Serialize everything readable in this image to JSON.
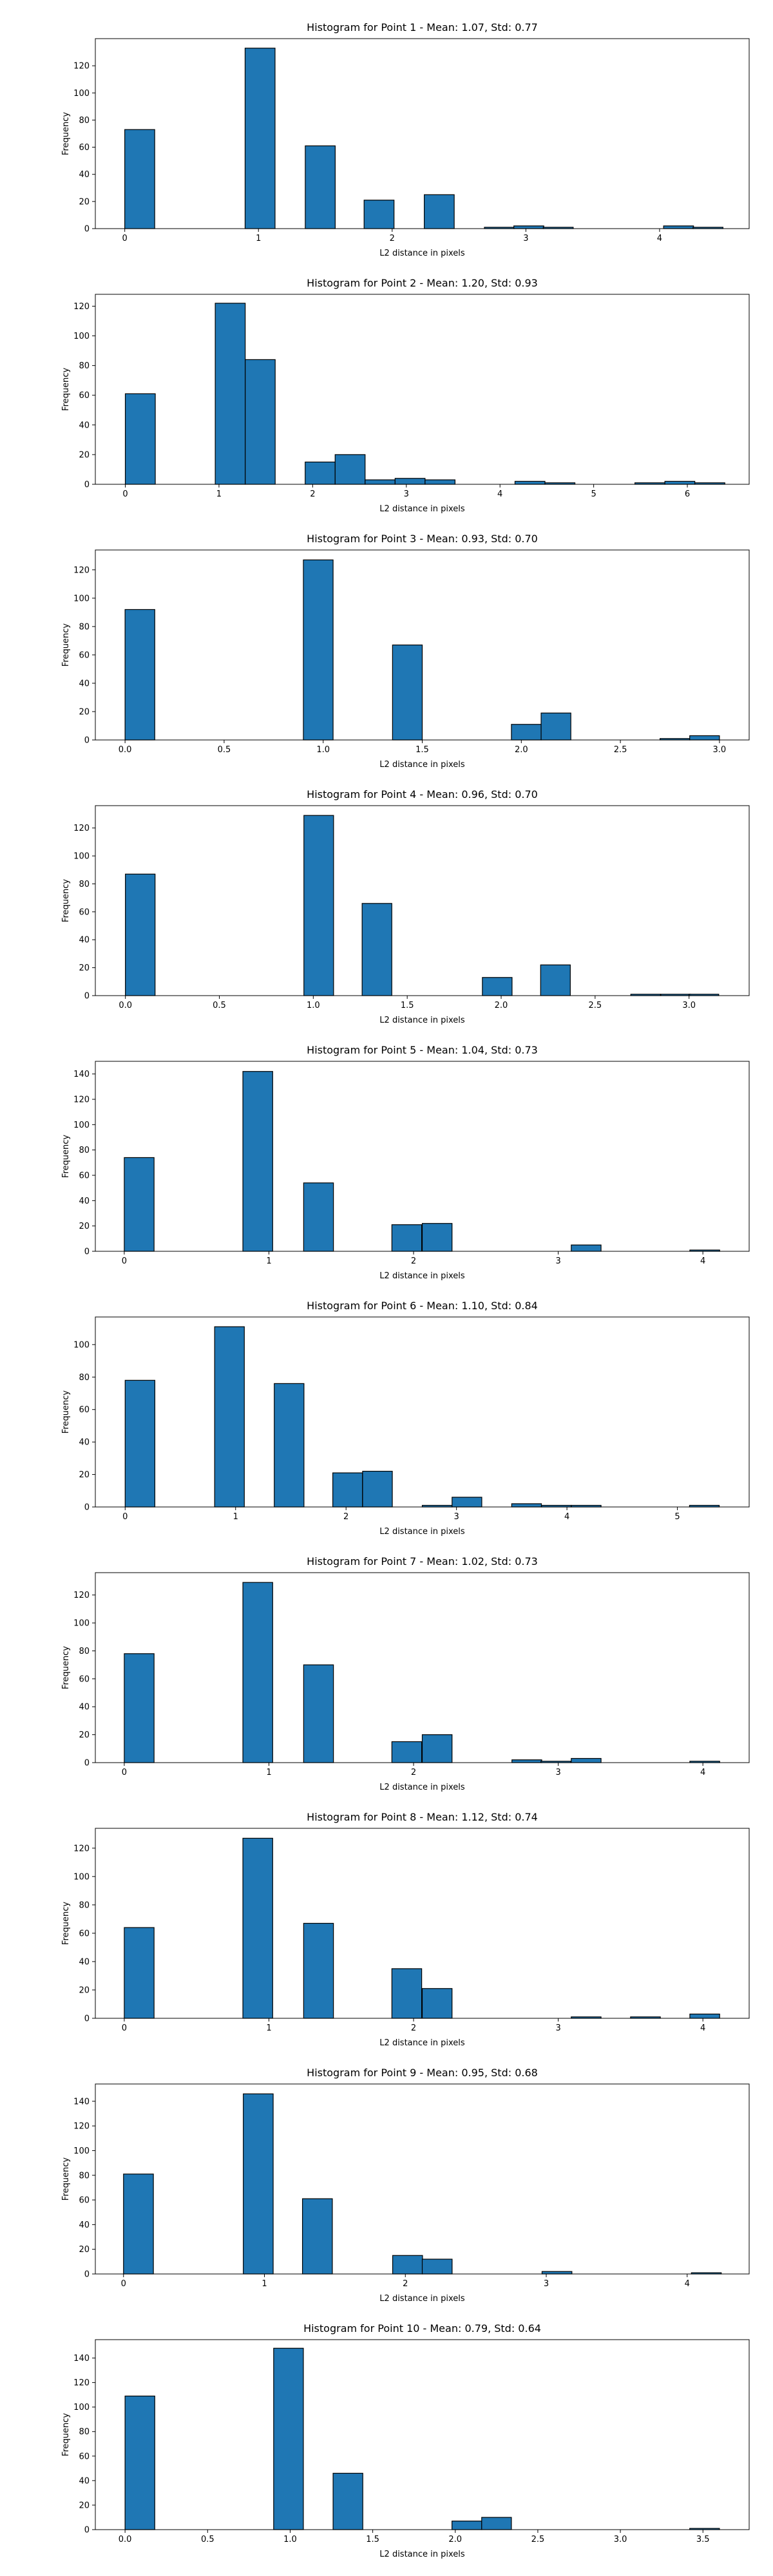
{
  "chart_data": [
    {
      "type": "bar",
      "title": "Histogram for Point 1 - Mean: 1.07, Std: 0.77",
      "xlabel": "L2 distance in pixels",
      "ylabel": "Frequency",
      "xlim": [
        -0.22,
        4.67
      ],
      "ylim": [
        0,
        140
      ],
      "xticks": [
        0,
        1,
        2,
        3,
        4
      ],
      "xtick_labels": [
        "0",
        "1",
        "2",
        "3",
        "4"
      ],
      "yticks": [
        0,
        20,
        40,
        60,
        80,
        100,
        120
      ],
      "bin_width": 0.224,
      "bins": [
        {
          "x0": 0.0,
          "count": 73
        },
        {
          "x0": 0.9,
          "count": 133
        },
        {
          "x0": 1.35,
          "count": 61
        },
        {
          "x0": 1.79,
          "count": 21
        },
        {
          "x0": 2.24,
          "count": 25
        },
        {
          "x0": 2.69,
          "count": 1
        },
        {
          "x0": 2.91,
          "count": 2
        },
        {
          "x0": 3.13,
          "count": 1
        },
        {
          "x0": 4.03,
          "count": 2
        },
        {
          "x0": 4.25,
          "count": 1
        }
      ]
    },
    {
      "type": "bar",
      "title": "Histogram for Point 2 - Mean: 1.20, Std: 0.93",
      "xlabel": "L2 distance in pixels",
      "ylabel": "Frequency",
      "xlim": [
        -0.32,
        6.66
      ],
      "ylim": [
        0,
        128
      ],
      "xticks": [
        0,
        1,
        2,
        3,
        4,
        5,
        6
      ],
      "xtick_labels": [
        "0",
        "1",
        "2",
        "3",
        "4",
        "5",
        "6"
      ],
      "yticks": [
        0,
        20,
        40,
        60,
        80,
        100,
        120
      ],
      "bin_width": 0.32,
      "bins": [
        {
          "x0": 0.0,
          "count": 61
        },
        {
          "x0": 0.96,
          "count": 122
        },
        {
          "x0": 1.28,
          "count": 84
        },
        {
          "x0": 1.92,
          "count": 15
        },
        {
          "x0": 2.24,
          "count": 20
        },
        {
          "x0": 2.56,
          "count": 3
        },
        {
          "x0": 2.88,
          "count": 4
        },
        {
          "x0": 3.2,
          "count": 3
        },
        {
          "x0": 4.16,
          "count": 2
        },
        {
          "x0": 4.48,
          "count": 1
        },
        {
          "x0": 5.44,
          "count": 1
        },
        {
          "x0": 5.76,
          "count": 2
        },
        {
          "x0": 6.08,
          "count": 1
        }
      ]
    },
    {
      "type": "bar",
      "title": "Histogram for Point 3 - Mean: 0.93, Std: 0.70",
      "xlabel": "L2 distance in pixels",
      "ylabel": "Frequency",
      "xlim": [
        -0.15,
        3.15
      ],
      "ylim": [
        0,
        134
      ],
      "xticks": [
        0,
        0.5,
        1,
        1.5,
        2,
        2.5,
        3
      ],
      "xtick_labels": [
        "0.0",
        "0.5",
        "1.0",
        "1.5",
        "2.0",
        "2.5",
        "3.0"
      ],
      "yticks": [
        0,
        20,
        40,
        60,
        80,
        100,
        120
      ],
      "bin_width": 0.15,
      "bins": [
        {
          "x0": 0.0,
          "count": 92
        },
        {
          "x0": 0.9,
          "count": 127
        },
        {
          "x0": 1.35,
          "count": 67
        },
        {
          "x0": 1.95,
          "count": 11
        },
        {
          "x0": 2.1,
          "count": 19
        },
        {
          "x0": 2.7,
          "count": 1
        },
        {
          "x0": 2.85,
          "count": 3
        }
      ]
    },
    {
      "type": "bar",
      "title": "Histogram for Point 4 - Mean: 0.96, Std: 0.70",
      "xlabel": "L2 distance in pixels",
      "ylabel": "Frequency",
      "xlim": [
        -0.16,
        3.32
      ],
      "ylim": [
        0,
        136
      ],
      "xticks": [
        0,
        0.5,
        1,
        1.5,
        2,
        2.5,
        3
      ],
      "xtick_labels": [
        "0.0",
        "0.5",
        "1.0",
        "1.5",
        "2.0",
        "2.5",
        "3.0"
      ],
      "yticks": [
        0,
        20,
        40,
        60,
        80,
        100,
        120
      ],
      "bin_width": 0.158,
      "bins": [
        {
          "x0": 0.0,
          "count": 87
        },
        {
          "x0": 0.95,
          "count": 129
        },
        {
          "x0": 1.26,
          "count": 66
        },
        {
          "x0": 1.9,
          "count": 13
        },
        {
          "x0": 2.21,
          "count": 22
        },
        {
          "x0": 2.69,
          "count": 1
        },
        {
          "x0": 2.85,
          "count": 1
        },
        {
          "x0": 3.0,
          "count": 1
        }
      ]
    },
    {
      "type": "bar",
      "title": "Histogram for Point 5 - Mean: 1.04, Std: 0.73",
      "xlabel": "L2 distance in pixels",
      "ylabel": "Frequency",
      "xlim": [
        -0.2,
        4.32
      ],
      "ylim": [
        0,
        150
      ],
      "xticks": [
        0,
        1,
        2,
        3,
        4
      ],
      "xtick_labels": [
        "0",
        "1",
        "2",
        "3",
        "4"
      ],
      "yticks": [
        0,
        20,
        40,
        60,
        80,
        100,
        120,
        140
      ],
      "bin_width": 0.206,
      "bins": [
        {
          "x0": 0.0,
          "count": 74
        },
        {
          "x0": 0.82,
          "count": 142
        },
        {
          "x0": 1.24,
          "count": 54
        },
        {
          "x0": 1.85,
          "count": 21
        },
        {
          "x0": 2.06,
          "count": 22
        },
        {
          "x0": 3.09,
          "count": 5
        },
        {
          "x0": 3.91,
          "count": 1
        }
      ]
    },
    {
      "type": "bar",
      "title": "Histogram for Point 6 - Mean: 1.10, Std: 0.84",
      "xlabel": "L2 distance in pixels",
      "ylabel": "Frequency",
      "xlim": [
        -0.27,
        5.65
      ],
      "ylim": [
        0,
        117
      ],
      "xticks": [
        0,
        1,
        2,
        3,
        4,
        5
      ],
      "xtick_labels": [
        "0",
        "1",
        "2",
        "3",
        "4",
        "5"
      ],
      "yticks": [
        0,
        20,
        40,
        60,
        80,
        100
      ],
      "bin_width": 0.269,
      "bins": [
        {
          "x0": 0.0,
          "count": 78
        },
        {
          "x0": 0.81,
          "count": 111
        },
        {
          "x0": 1.35,
          "count": 76
        },
        {
          "x0": 1.88,
          "count": 21
        },
        {
          "x0": 2.15,
          "count": 22
        },
        {
          "x0": 2.69,
          "count": 1
        },
        {
          "x0": 2.96,
          "count": 6
        },
        {
          "x0": 3.5,
          "count": 2
        },
        {
          "x0": 3.77,
          "count": 1
        },
        {
          "x0": 4.04,
          "count": 1
        },
        {
          "x0": 5.11,
          "count": 1
        }
      ]
    },
    {
      "type": "bar",
      "title": "Histogram for Point 7 - Mean: 1.02, Std: 0.73",
      "xlabel": "L2 distance in pixels",
      "ylabel": "Frequency",
      "xlim": [
        -0.2,
        4.32
      ],
      "ylim": [
        0,
        136
      ],
      "xticks": [
        0,
        1,
        2,
        3,
        4
      ],
      "xtick_labels": [
        "0",
        "1",
        "2",
        "3",
        "4"
      ],
      "yticks": [
        0,
        20,
        40,
        60,
        80,
        100,
        120
      ],
      "bin_width": 0.206,
      "bins": [
        {
          "x0": 0.0,
          "count": 78
        },
        {
          "x0": 0.82,
          "count": 129
        },
        {
          "x0": 1.24,
          "count": 70
        },
        {
          "x0": 1.85,
          "count": 15
        },
        {
          "x0": 2.06,
          "count": 20
        },
        {
          "x0": 2.68,
          "count": 2
        },
        {
          "x0": 2.88,
          "count": 1
        },
        {
          "x0": 3.09,
          "count": 3
        },
        {
          "x0": 3.91,
          "count": 1
        }
      ]
    },
    {
      "type": "bar",
      "title": "Histogram for Point 8 - Mean: 1.12, Std: 0.74",
      "xlabel": "L2 distance in pixels",
      "ylabel": "Frequency",
      "xlim": [
        -0.2,
        4.32
      ],
      "ylim": [
        0,
        134
      ],
      "xticks": [
        0,
        1,
        2,
        3,
        4
      ],
      "xtick_labels": [
        "0",
        "1",
        "2",
        "3",
        "4"
      ],
      "yticks": [
        0,
        20,
        40,
        60,
        80,
        100,
        120
      ],
      "bin_width": 0.206,
      "bins": [
        {
          "x0": 0.0,
          "count": 64
        },
        {
          "x0": 0.82,
          "count": 127
        },
        {
          "x0": 1.24,
          "count": 67
        },
        {
          "x0": 1.85,
          "count": 35
        },
        {
          "x0": 2.06,
          "count": 21
        },
        {
          "x0": 3.09,
          "count": 1
        },
        {
          "x0": 3.5,
          "count": 1
        },
        {
          "x0": 3.91,
          "count": 3
        }
      ]
    },
    {
      "type": "bar",
      "title": "Histogram for Point 9 - Mean: 0.95, Std: 0.68",
      "xlabel": "L2 distance in pixels",
      "ylabel": "Frequency",
      "xlim": [
        -0.2,
        4.44
      ],
      "ylim": [
        0,
        154
      ],
      "xticks": [
        0,
        1,
        2,
        3,
        4
      ],
      "xtick_labels": [
        "0",
        "1",
        "2",
        "3",
        "4"
      ],
      "yticks": [
        0,
        20,
        40,
        60,
        80,
        100,
        120,
        140
      ],
      "bin_width": 0.212,
      "bins": [
        {
          "x0": 0.0,
          "count": 81
        },
        {
          "x0": 0.85,
          "count": 146
        },
        {
          "x0": 1.27,
          "count": 61
        },
        {
          "x0": 1.91,
          "count": 15
        },
        {
          "x0": 2.12,
          "count": 12
        },
        {
          "x0": 2.97,
          "count": 2
        },
        {
          "x0": 4.03,
          "count": 1
        }
      ]
    },
    {
      "type": "bar",
      "title": "Histogram for Point 10 - Mean: 0.79, Std: 0.64",
      "xlabel": "L2 distance in pixels",
      "ylabel": "Frequency",
      "xlim": [
        -0.18,
        3.78
      ],
      "ylim": [
        0,
        155
      ],
      "xticks": [
        0,
        0.5,
        1,
        1.5,
        2,
        2.5,
        3,
        3.5
      ],
      "xtick_labels": [
        "0.0",
        "0.5",
        "1.0",
        "1.5",
        "2.0",
        "2.5",
        "3.0",
        "3.5"
      ],
      "yticks": [
        0,
        20,
        40,
        60,
        80,
        100,
        120,
        140
      ],
      "bin_width": 0.18,
      "bins": [
        {
          "x0": 0.0,
          "count": 109
        },
        {
          "x0": 0.9,
          "count": 148
        },
        {
          "x0": 1.26,
          "count": 46
        },
        {
          "x0": 1.98,
          "count": 7
        },
        {
          "x0": 2.16,
          "count": 10
        },
        {
          "x0": 3.42,
          "count": 1
        }
      ]
    }
  ],
  "colors": {
    "bar_fill": "#1f77b4",
    "bar_edge": "#000000",
    "axis": "#000000"
  }
}
